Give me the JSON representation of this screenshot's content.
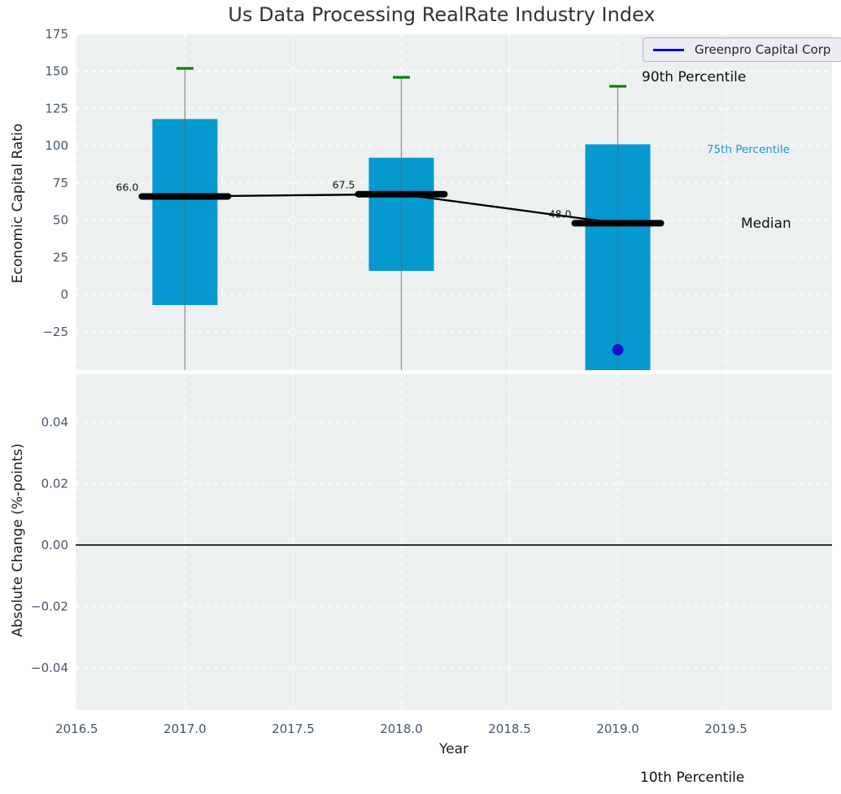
{
  "title": "Us Data Processing RealRate Industry Index",
  "legend": {
    "series_label": "Greenpro Capital Corp"
  },
  "percentile_annotations": {
    "p90": "90th Percentile",
    "p75": "75th Percentile",
    "median": "Median",
    "p10": "10th Percentile"
  },
  "colors": {
    "box_fill": "#0699cf",
    "whisker_cap_green": "#008000",
    "whisker_line_gray": "#666666",
    "median_line_black": "#000000",
    "company_series_blue": "#0808e0",
    "company_point_blue": "#1212cd",
    "panel_background": "#edf0f1",
    "grid_white": "#ffffff",
    "tick_label": "#45566c",
    "p75_label_cyan": "#1899c6",
    "zero_line": "#000000"
  },
  "chart_data": {
    "type": "box",
    "title": "Us Data Processing RealRate Industry Index",
    "xlabel": "Year",
    "xlim": [
      2016.495,
      2019.99
    ],
    "grid": true,
    "legend_position": "upper right",
    "xticks": [
      {
        "value": 2016.5,
        "label": "2016.5"
      },
      {
        "value": 2017.0,
        "label": "2017.0"
      },
      {
        "value": 2017.5,
        "label": "2017.5"
      },
      {
        "value": 2018.0,
        "label": "2018.0"
      },
      {
        "value": 2018.5,
        "label": "2018.5"
      },
      {
        "value": 2019.0,
        "label": "2019.0"
      },
      {
        "value": 2019.5,
        "label": "2019.5"
      }
    ],
    "panels": [
      {
        "ylabel": "Economic Capital Ratio",
        "ylim": [
          -50.7,
          175
        ],
        "yticks": [
          {
            "value": 175,
            "label": "175"
          },
          {
            "value": 150,
            "label": "150"
          },
          {
            "value": 125,
            "label": "125"
          },
          {
            "value": 100,
            "label": "100"
          },
          {
            "value": 75,
            "label": "75"
          },
          {
            "value": 50,
            "label": "50"
          },
          {
            "value": 25,
            "label": "25"
          },
          {
            "value": 0,
            "label": "0"
          },
          {
            "value": -25,
            "label": "−25"
          }
        ],
        "boxplots": [
          {
            "x": 2017,
            "p90": 152,
            "q3": 118,
            "median": 66.0,
            "median_label": "66.0",
            "q1": -7,
            "p10": null,
            "p10_clipped_below_axis": true
          },
          {
            "x": 2018,
            "p90": 146,
            "q3": 92,
            "median": 67.5,
            "median_label": "67.5",
            "q1": 16,
            "p10": null,
            "p10_clipped_below_axis": true
          },
          {
            "x": 2019,
            "p90": 140,
            "q3": 101,
            "median": 48.0,
            "median_label": "48.0",
            "q1": null,
            "q1_clipped_below_axis": true,
            "p10": null,
            "p10_clipped_below_axis": true
          }
        ],
        "median_trend": {
          "x": [
            2017,
            2018,
            2019
          ],
          "y": [
            66.0,
            67.5,
            48.0
          ]
        },
        "company_point": {
          "series": "Greenpro Capital Corp",
          "x": 2019,
          "y": -37
        }
      },
      {
        "ylabel": "Absolute Change (%-points)",
        "ylim": [
          -0.0538,
          0.0556
        ],
        "yticks": [
          {
            "value": 0.04,
            "label": "0.04"
          },
          {
            "value": 0.02,
            "label": "0.02"
          },
          {
            "value": 0.0,
            "label": "0.00"
          },
          {
            "value": -0.02,
            "label": "−0.02"
          },
          {
            "value": -0.04,
            "label": "−0.04"
          }
        ],
        "zero_line": 0.0,
        "series": []
      }
    ]
  }
}
